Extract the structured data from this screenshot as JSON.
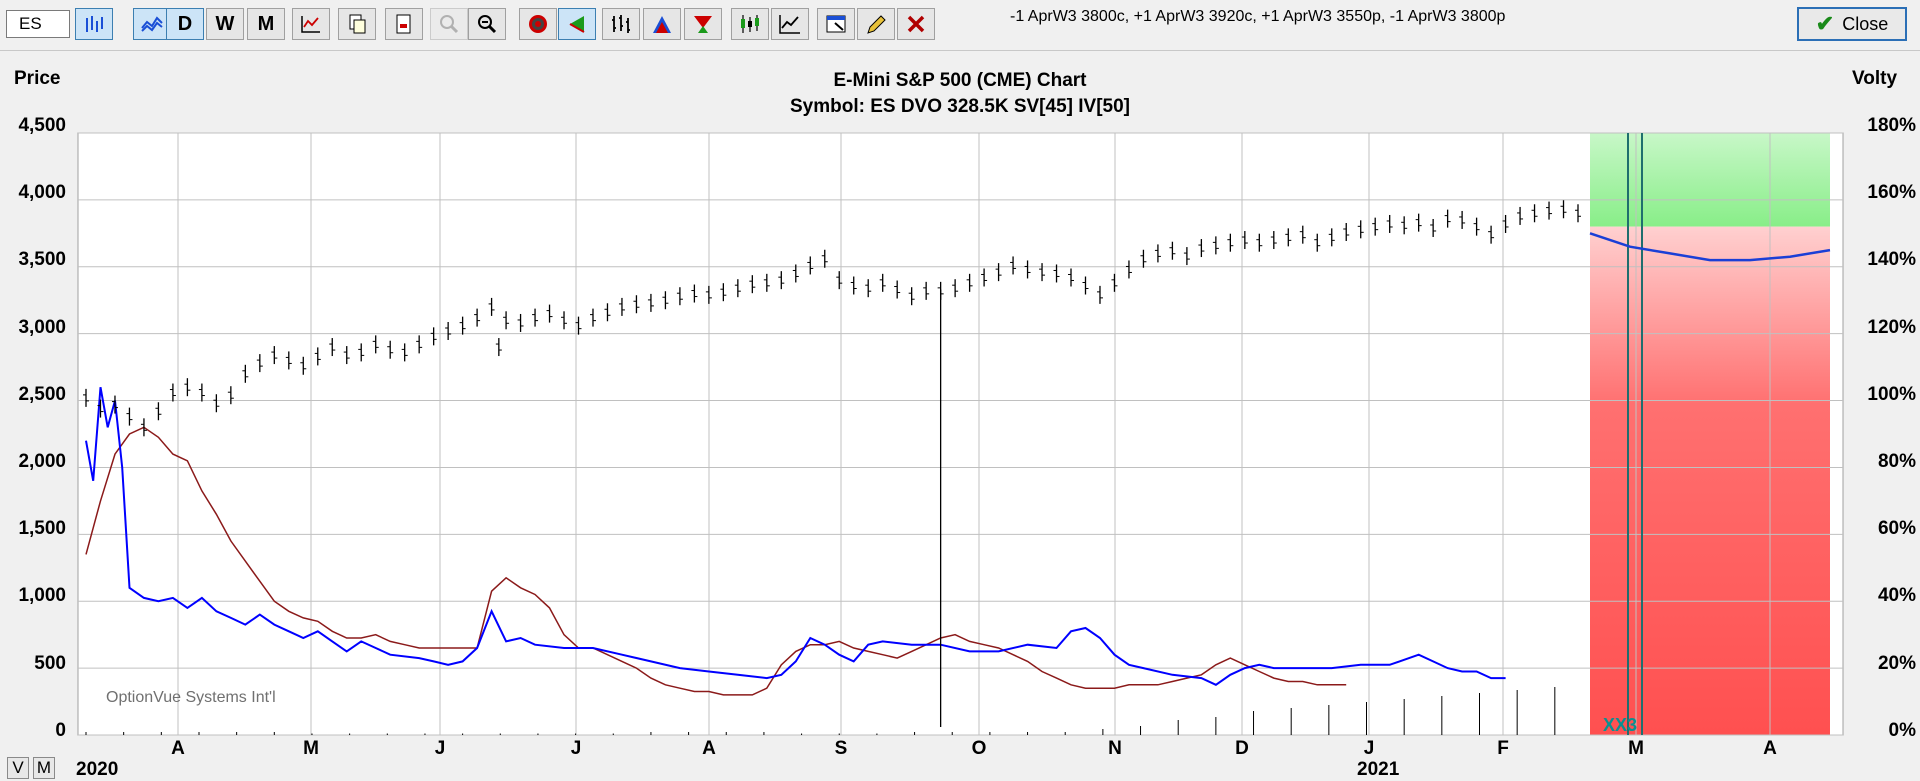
{
  "toolbar": {
    "symbol_value": "ES",
    "buttons": [
      {
        "name": "price-chart-button",
        "label": "",
        "icon": "bar-chart-icon",
        "active": true
      },
      {
        "name": "volatility-chart-button",
        "label": "",
        "icon": "volatility-chart-icon",
        "active": true
      },
      {
        "name": "daily-button",
        "label": "D",
        "active": true
      },
      {
        "name": "weekly-button",
        "label": "W",
        "active": false
      },
      {
        "name": "monthly-button",
        "label": "M",
        "active": false
      },
      {
        "name": "chart-settings-button",
        "label": "",
        "icon": "chart-settings-icon"
      },
      {
        "name": "copy-button",
        "label": "",
        "icon": "copy-icon"
      },
      {
        "name": "print-button",
        "label": "",
        "icon": "print-icon"
      },
      {
        "name": "zoom-in-button",
        "label": "",
        "icon": "zoom-in-icon",
        "disabled": true
      },
      {
        "name": "zoom-out-button",
        "label": "",
        "icon": "zoom-out-icon"
      },
      {
        "name": "target-button",
        "label": "",
        "icon": "target-icon"
      },
      {
        "name": "arrow-left-button",
        "label": "",
        "icon": "arrow-left-icon",
        "active": true
      },
      {
        "name": "ohlc-bars-button",
        "label": "",
        "icon": "ohlc-bars-icon"
      },
      {
        "name": "triangle-up-button",
        "label": "",
        "icon": "triangle-up-icon"
      },
      {
        "name": "triangle-down-button",
        "label": "",
        "icon": "triangle-down-icon"
      },
      {
        "name": "candles-button",
        "label": "",
        "icon": "candles-icon"
      },
      {
        "name": "line-chart-button",
        "label": "",
        "icon": "line-chart-icon"
      },
      {
        "name": "studies-button",
        "label": "",
        "icon": "studies-icon"
      },
      {
        "name": "pencil-button",
        "label": "",
        "icon": "pencil-icon"
      },
      {
        "name": "delete-button",
        "label": "",
        "icon": "delete-x-icon"
      }
    ],
    "positions_text": "-1 AprW3 3800c, +1 AprW3 3920c, +1 AprW3 3550p, -1 AprW3 3800p",
    "close_label": "Close"
  },
  "chart": {
    "left_axis_title": "Price",
    "right_axis_title": "Volty",
    "title_line1": "E-Mini S&P 500 (CME) Chart",
    "title_line2": "Symbol: ES  DVO 328.5K  SV[45]  IV[50]",
    "watermark": "OptionVue Systems Int'l",
    "marker_label": "XX3",
    "year_2020": "2020",
    "year_2021": "2021",
    "view_buttons": [
      "V",
      "M"
    ]
  },
  "chart_data": {
    "type": "line",
    "title": "E-Mini S&P 500 (CME) Chart",
    "subtitle": "Symbol: ES  DVO 328.5K  SV[45]  IV[50]",
    "ylabel_left": "Price",
    "ylabel_right": "Volty",
    "ylim_left": [
      0,
      4500
    ],
    "ylim_right": [
      0,
      180
    ],
    "yticks_left": [
      "4,500",
      "4,000",
      "3,500",
      "3,000",
      "2,500",
      "2,000",
      "1,500",
      "1,000",
      "500",
      "0"
    ],
    "yticks_right": [
      "180%",
      "160%",
      "140%",
      "120%",
      "100%",
      "80%",
      "60%",
      "40%",
      "20%",
      "0%"
    ],
    "xticks": [
      "A",
      "M",
      "J",
      "J",
      "A",
      "S",
      "O",
      "N",
      "D",
      "J",
      "F",
      "M",
      "A"
    ],
    "grid": true,
    "colors": {
      "price": "#000000",
      "statistical_volatility": "#0000ff",
      "implied_volatility": "#8b1a1a",
      "profit_zone": "#a8f0a8",
      "loss_zone": "#ff5555"
    },
    "price_bars": [
      [
        0,
        2520
      ],
      [
        2,
        2440
      ],
      [
        4,
        2470
      ],
      [
        6,
        2380
      ],
      [
        8,
        2300
      ],
      [
        10,
        2420
      ],
      [
        12,
        2560
      ],
      [
        14,
        2600
      ],
      [
        16,
        2560
      ],
      [
        18,
        2480
      ],
      [
        20,
        2540
      ],
      [
        22,
        2700
      ],
      [
        24,
        2780
      ],
      [
        26,
        2840
      ],
      [
        28,
        2800
      ],
      [
        30,
        2760
      ],
      [
        32,
        2830
      ],
      [
        34,
        2900
      ],
      [
        36,
        2840
      ],
      [
        38,
        2860
      ],
      [
        40,
        2920
      ],
      [
        42,
        2880
      ],
      [
        44,
        2860
      ],
      [
        46,
        2920
      ],
      [
        48,
        2980
      ],
      [
        50,
        3020
      ],
      [
        52,
        3060
      ],
      [
        54,
        3120
      ],
      [
        56,
        3200
      ],
      [
        57,
        2900
      ],
      [
        58,
        3100
      ],
      [
        60,
        3080
      ],
      [
        62,
        3120
      ],
      [
        64,
        3150
      ],
      [
        66,
        3100
      ],
      [
        68,
        3060
      ],
      [
        70,
        3120
      ],
      [
        72,
        3160
      ],
      [
        74,
        3200
      ],
      [
        76,
        3220
      ],
      [
        78,
        3230
      ],
      [
        80,
        3250
      ],
      [
        82,
        3280
      ],
      [
        84,
        3300
      ],
      [
        86,
        3290
      ],
      [
        88,
        3310
      ],
      [
        90,
        3340
      ],
      [
        92,
        3370
      ],
      [
        94,
        3380
      ],
      [
        96,
        3400
      ],
      [
        98,
        3450
      ],
      [
        100,
        3510
      ],
      [
        102,
        3560
      ],
      [
        104,
        3400
      ],
      [
        106,
        3360
      ],
      [
        108,
        3340
      ],
      [
        110,
        3380
      ],
      [
        112,
        3330
      ],
      [
        114,
        3280
      ],
      [
        116,
        3320
      ],
      [
        118,
        3320
      ],
      [
        120,
        3340
      ],
      [
        122,
        3380
      ],
      [
        124,
        3420
      ],
      [
        126,
        3460
      ],
      [
        128,
        3510
      ],
      [
        130,
        3480
      ],
      [
        132,
        3460
      ],
      [
        134,
        3450
      ],
      [
        136,
        3420
      ],
      [
        138,
        3360
      ],
      [
        140,
        3290
      ],
      [
        142,
        3380
      ],
      [
        144,
        3480
      ],
      [
        146,
        3560
      ],
      [
        148,
        3600
      ],
      [
        150,
        3620
      ],
      [
        152,
        3580
      ],
      [
        154,
        3640
      ],
      [
        156,
        3660
      ],
      [
        158,
        3680
      ],
      [
        160,
        3700
      ],
      [
        162,
        3680
      ],
      [
        164,
        3700
      ],
      [
        166,
        3720
      ],
      [
        168,
        3740
      ],
      [
        170,
        3680
      ],
      [
        172,
        3720
      ],
      [
        174,
        3760
      ],
      [
        176,
        3780
      ],
      [
        178,
        3800
      ],
      [
        180,
        3820
      ],
      [
        182,
        3810
      ],
      [
        184,
        3830
      ],
      [
        186,
        3790
      ],
      [
        188,
        3860
      ],
      [
        190,
        3850
      ],
      [
        192,
        3800
      ],
      [
        194,
        3740
      ],
      [
        196,
        3820
      ],
      [
        198,
        3880
      ],
      [
        200,
        3900
      ],
      [
        202,
        3920
      ],
      [
        204,
        3930
      ],
      [
        206,
        3900
      ]
    ],
    "statistical_volatility": [
      [
        0,
        88
      ],
      [
        1,
        76
      ],
      [
        2,
        104
      ],
      [
        3,
        92
      ],
      [
        4,
        100
      ],
      [
        5,
        80
      ],
      [
        6,
        44
      ],
      [
        8,
        41
      ],
      [
        10,
        40
      ],
      [
        12,
        41
      ],
      [
        14,
        38
      ],
      [
        16,
        41
      ],
      [
        18,
        37
      ],
      [
        20,
        35
      ],
      [
        22,
        33
      ],
      [
        24,
        36
      ],
      [
        26,
        33
      ],
      [
        28,
        31
      ],
      [
        30,
        29
      ],
      [
        32,
        31
      ],
      [
        34,
        28
      ],
      [
        36,
        25
      ],
      [
        38,
        28
      ],
      [
        40,
        26
      ],
      [
        42,
        24
      ],
      [
        46,
        23
      ],
      [
        48,
        22
      ],
      [
        50,
        21
      ],
      [
        52,
        22
      ],
      [
        54,
        26
      ],
      [
        56,
        37
      ],
      [
        58,
        28
      ],
      [
        60,
        29
      ],
      [
        62,
        27
      ],
      [
        66,
        26
      ],
      [
        70,
        26
      ],
      [
        74,
        24
      ],
      [
        78,
        22
      ],
      [
        82,
        20
      ],
      [
        86,
        19
      ],
      [
        90,
        18
      ],
      [
        94,
        17
      ],
      [
        96,
        18
      ],
      [
        98,
        22
      ],
      [
        100,
        29
      ],
      [
        102,
        27
      ],
      [
        104,
        24
      ],
      [
        106,
        22
      ],
      [
        108,
        27
      ],
      [
        110,
        28
      ],
      [
        114,
        27
      ],
      [
        118,
        27
      ],
      [
        122,
        25
      ],
      [
        126,
        25
      ],
      [
        130,
        27
      ],
      [
        134,
        26
      ],
      [
        136,
        31
      ],
      [
        138,
        32
      ],
      [
        140,
        29
      ],
      [
        142,
        24
      ],
      [
        144,
        21
      ],
      [
        146,
        20
      ],
      [
        150,
        18
      ],
      [
        154,
        17
      ],
      [
        156,
        15
      ],
      [
        158,
        18
      ],
      [
        160,
        20
      ],
      [
        162,
        21
      ],
      [
        164,
        20
      ],
      [
        168,
        20
      ],
      [
        172,
        20
      ],
      [
        176,
        21
      ],
      [
        180,
        21
      ],
      [
        184,
        24
      ],
      [
        186,
        22
      ],
      [
        188,
        20
      ],
      [
        190,
        19
      ],
      [
        192,
        19
      ],
      [
        194,
        17
      ],
      [
        196,
        17
      ]
    ],
    "implied_volatility": [
      [
        0,
        54
      ],
      [
        2,
        70
      ],
      [
        4,
        84
      ],
      [
        6,
        90
      ],
      [
        8,
        92
      ],
      [
        10,
        89
      ],
      [
        12,
        84
      ],
      [
        14,
        82
      ],
      [
        16,
        73
      ],
      [
        18,
        66
      ],
      [
        20,
        58
      ],
      [
        22,
        52
      ],
      [
        24,
        46
      ],
      [
        26,
        40
      ],
      [
        28,
        37
      ],
      [
        30,
        35
      ],
      [
        32,
        34
      ],
      [
        34,
        31
      ],
      [
        36,
        29
      ],
      [
        38,
        29
      ],
      [
        40,
        30
      ],
      [
        42,
        28
      ],
      [
        44,
        27
      ],
      [
        46,
        26
      ],
      [
        48,
        26
      ],
      [
        50,
        26
      ],
      [
        52,
        26
      ],
      [
        54,
        26
      ],
      [
        56,
        43
      ],
      [
        58,
        47
      ],
      [
        60,
        44
      ],
      [
        62,
        42
      ],
      [
        64,
        38
      ],
      [
        66,
        30
      ],
      [
        68,
        26
      ],
      [
        70,
        26
      ],
      [
        72,
        24
      ],
      [
        74,
        22
      ],
      [
        76,
        20
      ],
      [
        78,
        17
      ],
      [
        80,
        15
      ],
      [
        82,
        14
      ],
      [
        84,
        13
      ],
      [
        86,
        13
      ],
      [
        88,
        12
      ],
      [
        90,
        12
      ],
      [
        92,
        12
      ],
      [
        94,
        14
      ],
      [
        96,
        21
      ],
      [
        98,
        25
      ],
      [
        100,
        27
      ],
      [
        102,
        27
      ],
      [
        104,
        28
      ],
      [
        106,
        26
      ],
      [
        108,
        25
      ],
      [
        110,
        24
      ],
      [
        112,
        23
      ],
      [
        114,
        25
      ],
      [
        116,
        27
      ],
      [
        118,
        29
      ],
      [
        120,
        30
      ],
      [
        122,
        28
      ],
      [
        124,
        27
      ],
      [
        126,
        26
      ],
      [
        128,
        24
      ],
      [
        130,
        22
      ],
      [
        132,
        19
      ],
      [
        134,
        17
      ],
      [
        136,
        15
      ],
      [
        138,
        14
      ],
      [
        140,
        14
      ],
      [
        142,
        14
      ],
      [
        144,
        15
      ],
      [
        146,
        15
      ],
      [
        148,
        15
      ],
      [
        150,
        16
      ],
      [
        152,
        17
      ],
      [
        154,
        18
      ],
      [
        156,
        21
      ],
      [
        158,
        23
      ],
      [
        160,
        21
      ],
      [
        162,
        19
      ],
      [
        164,
        17
      ],
      [
        166,
        16
      ],
      [
        168,
        16
      ],
      [
        170,
        15
      ],
      [
        172,
        15
      ],
      [
        174,
        15
      ]
    ],
    "volatility_forecast": [
      [
        0,
        150
      ],
      [
        25,
        146
      ],
      [
        50,
        144
      ],
      [
        75,
        142
      ],
      [
        100,
        142
      ],
      [
        125,
        143
      ],
      [
        150,
        145
      ]
    ],
    "volume_bars": [
      1,
      1,
      1,
      1,
      1,
      1,
      0.5,
      0.5,
      0.5,
      0.5,
      0.5,
      0.5,
      0.5,
      0.5,
      0.5,
      1,
      1,
      1,
      1,
      0.5,
      0.5,
      0.5,
      1,
      1,
      1,
      1,
      1,
      2,
      3,
      5,
      6,
      8,
      9,
      10,
      11,
      12,
      13,
      14,
      15,
      16
    ]
  }
}
